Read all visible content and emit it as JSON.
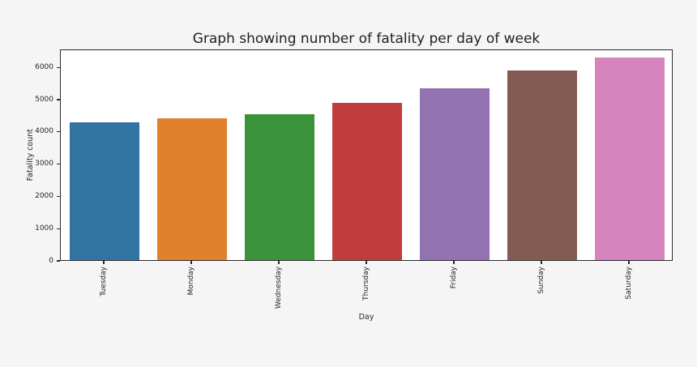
{
  "chart_data": {
    "type": "bar",
    "title": "Graph showing number of fatality per day of week",
    "xlabel": "Day",
    "ylabel": "Fatality count",
    "categories": [
      "Tuesday",
      "Monday",
      "Wednesday",
      "Thursday",
      "Friday",
      "Sunday",
      "Saturday"
    ],
    "values": [
      4280,
      4390,
      4530,
      4870,
      5340,
      5870,
      6280
    ],
    "bar_colors": [
      "#3274a1",
      "#e1812c",
      "#3a923a",
      "#c03d3e",
      "#9372b2",
      "#845b53",
      "#d684bd"
    ],
    "yticks": [
      0,
      1000,
      2000,
      3000,
      4000,
      5000,
      6000
    ],
    "ylim": [
      0,
      6560
    ],
    "grid": false,
    "legend": null,
    "bar_width_fraction": 0.8
  },
  "figure": {
    "background_color": "#f5f5f6",
    "plot_background_color": "#ffffff",
    "spine_color": "#2b2b2b",
    "text_color": "#262626"
  }
}
